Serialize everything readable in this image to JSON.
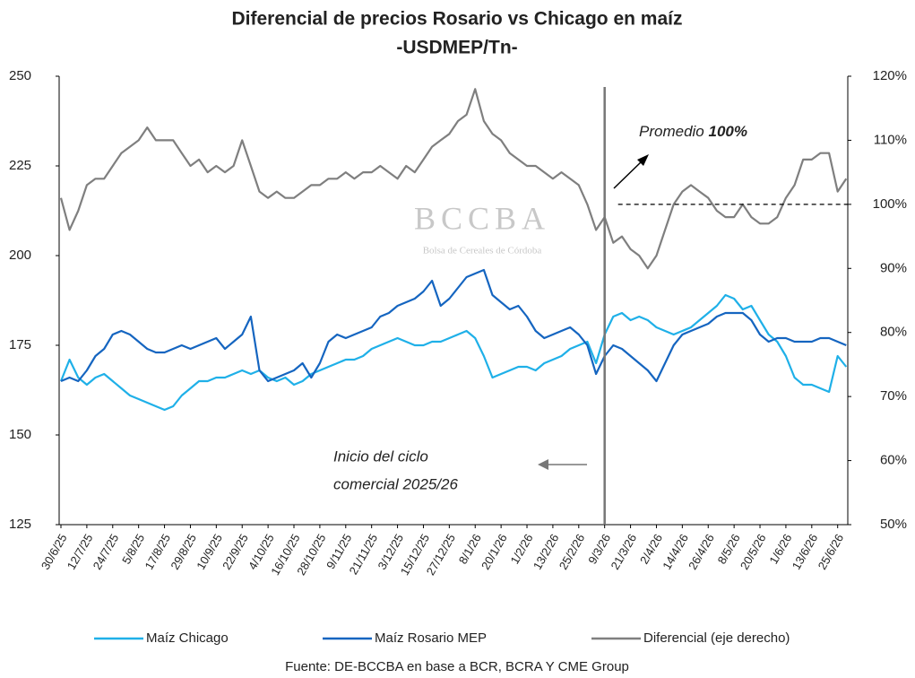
{
  "chart_data": {
    "type": "line",
    "title": "Diferencial de precios Rosario vs Chicago en maíz",
    "subtitle": "-USDMEP/Tn-",
    "source": "Fuente: DE-BCCBA en base a BCR, BCRA Y CME Group",
    "watermark": "BCCBA",
    "watermark_subtitle": "Bolsa de Cereales de Córdoba",
    "annotations": {
      "promedio": "Promedio",
      "promedio_value": "100%",
      "inicio_line1": "Inicio del ciclo",
      "inicio_line2": "comercial 2025/26"
    },
    "vertical_line_at": "9/3/26",
    "reference_line": {
      "value": 100,
      "axis": "y2",
      "from": "9/3/26"
    },
    "categories": [
      "30/6/25",
      null,
      null,
      "12/7/25",
      null,
      null,
      "24/7/25",
      null,
      null,
      "5/8/25",
      null,
      null,
      "17/8/25",
      null,
      null,
      "29/8/25",
      null,
      null,
      "10/9/25",
      null,
      null,
      "22/9/25",
      null,
      null,
      "4/10/25",
      null,
      null,
      "16/10/25",
      null,
      null,
      "28/10/25",
      null,
      null,
      "9/11/25",
      null,
      null,
      "21/11/25",
      null,
      null,
      "3/12/25",
      null,
      null,
      "15/12/25",
      null,
      null,
      "27/12/25",
      null,
      null,
      "8/1/26",
      null,
      null,
      "20/1/26",
      null,
      null,
      "1/2/26",
      null,
      null,
      "13/2/26",
      null,
      null,
      "25/2/26",
      null,
      null,
      "9/3/26",
      null,
      null,
      "21/3/26",
      null,
      null,
      "2/4/26",
      null,
      null,
      "14/4/26",
      null,
      null,
      "26/4/26",
      null,
      null,
      "8/5/26",
      null,
      null,
      "20/5/26",
      null,
      null,
      "1/6/26",
      null,
      null,
      "13/6/26",
      null,
      null,
      "25/6/26",
      null
    ],
    "series": [
      {
        "name": "Maíz Chicago",
        "color": "#1fb0e8",
        "values": [
          165,
          171,
          166,
          164,
          166,
          167,
          165,
          163,
          161,
          160,
          159,
          158,
          157,
          158,
          161,
          163,
          165,
          165,
          166,
          166,
          167,
          168,
          167,
          168,
          166,
          165,
          166,
          164,
          165,
          167,
          168,
          169,
          170,
          171,
          171,
          172,
          174,
          175,
          176,
          177,
          176,
          175,
          175,
          176,
          176,
          177,
          178,
          179,
          177,
          172,
          166,
          167,
          168,
          169,
          169,
          168,
          170,
          171,
          172,
          174,
          175,
          176,
          170,
          178,
          183,
          184,
          182,
          183,
          182,
          180,
          179,
          178,
          179,
          180,
          182,
          184,
          186,
          189,
          188,
          185,
          186,
          182,
          178,
          176,
          172,
          166,
          164,
          164,
          163,
          162,
          172,
          169
        ]
      },
      {
        "name": "Maíz Rosario MEP",
        "color": "#1565c0",
        "values": [
          165,
          166,
          165,
          168,
          172,
          174,
          178,
          179,
          178,
          176,
          174,
          173,
          173,
          174,
          175,
          174,
          175,
          176,
          177,
          174,
          176,
          178,
          183,
          168,
          165,
          166,
          167,
          168,
          170,
          166,
          170,
          176,
          178,
          177,
          178,
          179,
          180,
          183,
          184,
          186,
          187,
          188,
          190,
          193,
          186,
          188,
          191,
          194,
          195,
          196,
          189,
          187,
          185,
          186,
          183,
          179,
          177,
          178,
          179,
          180,
          178,
          175,
          167,
          172,
          175,
          174,
          172,
          170,
          168,
          165,
          170,
          175,
          178,
          179,
          180,
          181,
          183,
          184,
          184,
          184,
          182,
          178,
          176,
          177,
          177,
          176,
          176,
          176,
          177,
          177,
          176,
          175
        ]
      },
      {
        "name": "Diferencial (eje derecho)",
        "color": "#7f7f7f",
        "axis": "y2",
        "values": [
          101,
          96,
          99,
          103,
          104,
          104,
          106,
          108,
          109,
          110,
          112,
          110,
          110,
          110,
          108,
          106,
          107,
          105,
          106,
          105,
          106,
          110,
          106,
          102,
          101,
          102,
          101,
          101,
          102,
          103,
          103,
          104,
          104,
          105,
          104,
          105,
          105,
          106,
          105,
          104,
          106,
          105,
          107,
          109,
          110,
          111,
          113,
          114,
          118,
          113,
          111,
          110,
          108,
          107,
          106,
          106,
          105,
          104,
          105,
          104,
          103,
          100,
          96,
          98,
          94,
          95,
          93,
          92,
          90,
          92,
          96,
          100,
          102,
          103,
          102,
          101,
          99,
          98,
          98,
          100,
          98,
          97,
          97,
          98,
          101,
          103,
          107,
          107,
          108,
          108,
          102,
          104
        ]
      }
    ],
    "ylim": [
      125,
      250
    ],
    "yticks": [
      125,
      150,
      175,
      200,
      225,
      250
    ],
    "y2lim": [
      50,
      120
    ],
    "y2ticks": [
      {
        "value": 50,
        "label": "50%"
      },
      {
        "value": 60,
        "label": "60%"
      },
      {
        "value": 70,
        "label": "70%"
      },
      {
        "value": 80,
        "label": "80%"
      },
      {
        "value": 90,
        "label": "90%"
      },
      {
        "value": 100,
        "label": "100%"
      },
      {
        "value": 110,
        "label": "110%"
      },
      {
        "value": 120,
        "label": "120%"
      }
    ],
    "legend": "bottom"
  }
}
